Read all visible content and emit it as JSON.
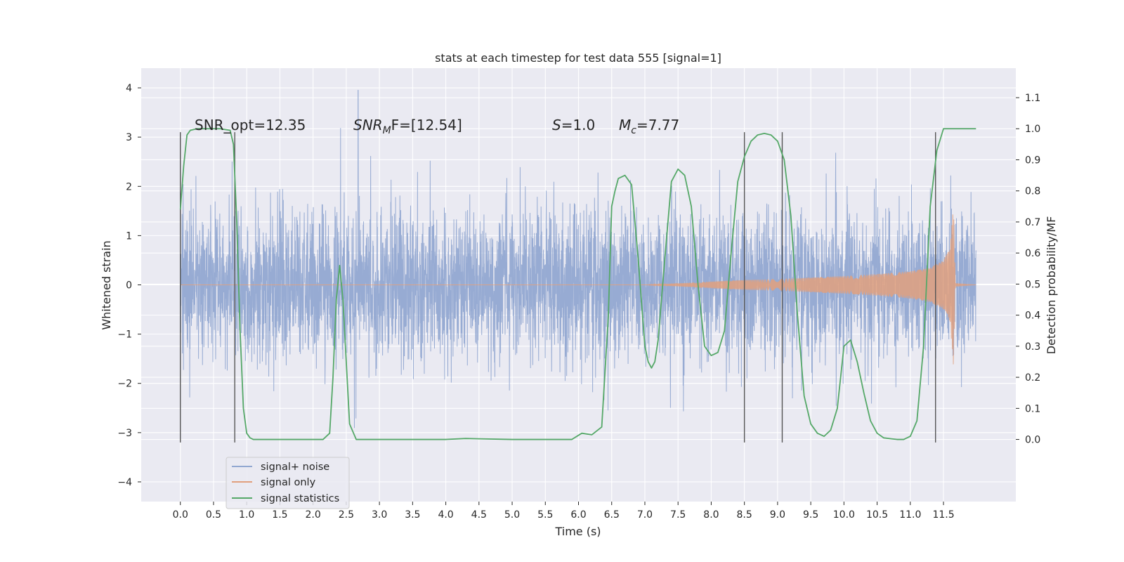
{
  "chart_data": {
    "type": "line",
    "title": "stats at each timestep for test data 555 [signal=1]",
    "xlabel": "Time (s)",
    "ylabel": "Whitened strain",
    "ylabel_right": "Detection probability/MF",
    "xlim": [
      -0.59,
      12.59
    ],
    "ylim": [
      -4.4,
      4.4
    ],
    "ylim_right": [
      -0.2,
      1.195
    ],
    "x_ticks": [
      0.0,
      0.5,
      1.0,
      1.5,
      2.0,
      2.5,
      3.0,
      3.5,
      4.0,
      4.5,
      5.0,
      5.5,
      6.0,
      6.5,
      7.0,
      7.5,
      8.0,
      8.5,
      9.0,
      9.5,
      10.0,
      10.5,
      11.0,
      11.5
    ],
    "x_tick_labels": [
      "0.0",
      "0.5",
      "1.0",
      "1.5",
      "2.0",
      "2.5",
      "3.0",
      "3.5",
      "4.0",
      "4.5",
      "5.0",
      "5.5",
      "6.0",
      "6.5",
      "7.0",
      "7.5",
      "8.0",
      "8.5",
      "9.0",
      "9.5",
      "10.0",
      "10.5",
      "11.0",
      "11.5"
    ],
    "y_ticks": [
      4,
      3,
      2,
      1,
      0,
      -1,
      -2,
      -3,
      -4
    ],
    "y_tick_labels": [
      "4",
      "3",
      "2",
      "1",
      "0",
      "−1",
      "−2",
      "−3",
      "−4"
    ],
    "y_ticks_right": [
      1.1,
      1.0,
      0.9,
      0.8,
      0.7,
      0.6,
      0.5,
      0.4,
      0.3,
      0.2,
      0.1,
      0.0
    ],
    "y_tick_labels_right": [
      "1.1",
      "1.0",
      "0.9",
      "0.8",
      "0.7",
      "0.6",
      "0.5",
      "0.4",
      "0.3",
      "0.2",
      "0.1",
      "0.0"
    ],
    "grid": true,
    "legend_position": "lower-left",
    "annotations": {
      "snr_opt": "SNR_opt=12.35",
      "snr_mf_prefix": "SNR",
      "snr_mf_sub": "M",
      "snr_mf_suffix": "F=[12.54]",
      "s_var": "S",
      "s_value": "=1.0",
      "mc_var": "M",
      "mc_sub": "c",
      "mc_value": "=7.77"
    },
    "series": [
      {
        "name": "signal+ noise",
        "color": "#92a8d1",
        "kind": "noise",
        "x_range": [
          0.0,
          11.99
        ],
        "approx_std": 0.75,
        "peak": [
          2.68,
          3.95
        ]
      },
      {
        "name": "signal only",
        "color": "#e1a07e",
        "kind": "chirp",
        "envelope": {
          "x": [
            0.0,
            7.0,
            7.5,
            8.0,
            8.5,
            9.0,
            9.5,
            10.0,
            10.5,
            11.0,
            11.3,
            11.5,
            11.6,
            11.65,
            11.68,
            11.99
          ],
          "amplitude": [
            0.0,
            0.0,
            0.03,
            0.07,
            0.1,
            0.12,
            0.15,
            0.18,
            0.22,
            0.28,
            0.35,
            0.5,
            0.75,
            1.7,
            0.03,
            0.0
          ]
        }
      },
      {
        "name": "signal statistics",
        "color": "#55a868",
        "axis": "right",
        "x": [
          0.0,
          0.05,
          0.1,
          0.15,
          0.25,
          0.4,
          0.6,
          0.75,
          0.8,
          0.85,
          0.9,
          0.95,
          1.0,
          1.05,
          1.1,
          1.2,
          1.5,
          2.0,
          2.15,
          2.25,
          2.3,
          2.35,
          2.4,
          2.45,
          2.5,
          2.55,
          2.65,
          3.0,
          4.0,
          4.3,
          4.5,
          5.0,
          5.5,
          5.9,
          6.05,
          6.2,
          6.35,
          6.45,
          6.5,
          6.55,
          6.6,
          6.7,
          6.8,
          6.9,
          7.0,
          7.05,
          7.1,
          7.15,
          7.2,
          7.3,
          7.4,
          7.5,
          7.6,
          7.7,
          7.8,
          7.9,
          8.0,
          8.1,
          8.2,
          8.3,
          8.4,
          8.5,
          8.6,
          8.7,
          8.8,
          8.9,
          9.0,
          9.1,
          9.2,
          9.3,
          9.4,
          9.5,
          9.6,
          9.7,
          9.8,
          9.9,
          10.0,
          10.1,
          10.2,
          10.3,
          10.4,
          10.5,
          10.6,
          10.8,
          10.9,
          11.0,
          11.1,
          11.2,
          11.3,
          11.4,
          11.5,
          11.6,
          11.7,
          11.99
        ],
        "values": [
          0.74,
          0.88,
          0.98,
          0.995,
          1.0,
          1.0,
          1.0,
          0.995,
          0.95,
          0.7,
          0.35,
          0.1,
          0.02,
          0.005,
          0.0,
          0.0,
          0.0,
          0.0,
          0.0,
          0.02,
          0.2,
          0.45,
          0.56,
          0.45,
          0.25,
          0.05,
          0.0,
          0.0,
          0.0,
          0.003,
          0.002,
          0.0,
          0.0,
          0.0,
          0.02,
          0.015,
          0.04,
          0.4,
          0.75,
          0.8,
          0.84,
          0.85,
          0.82,
          0.58,
          0.3,
          0.25,
          0.23,
          0.25,
          0.32,
          0.58,
          0.83,
          0.87,
          0.85,
          0.75,
          0.5,
          0.3,
          0.27,
          0.28,
          0.35,
          0.6,
          0.83,
          0.91,
          0.96,
          0.98,
          0.985,
          0.98,
          0.96,
          0.9,
          0.72,
          0.4,
          0.14,
          0.05,
          0.02,
          0.01,
          0.03,
          0.1,
          0.3,
          0.32,
          0.25,
          0.15,
          0.06,
          0.02,
          0.005,
          0.0,
          0.0,
          0.01,
          0.06,
          0.3,
          0.75,
          0.93,
          1.0,
          1.0,
          1.0,
          1.0
        ]
      }
    ],
    "vertical_markers": [
      {
        "x": 0.0,
        "y_range": [
          -3.2,
          3.1
        ]
      },
      {
        "x": 0.82,
        "y_range": [
          -3.2,
          3.1
        ]
      },
      {
        "x": 8.5,
        "y_range": [
          -3.2,
          3.1
        ]
      },
      {
        "x": 9.07,
        "y_range": [
          -3.2,
          3.1
        ]
      },
      {
        "x": 11.38,
        "y_range": [
          -3.2,
          3.1
        ]
      }
    ]
  }
}
